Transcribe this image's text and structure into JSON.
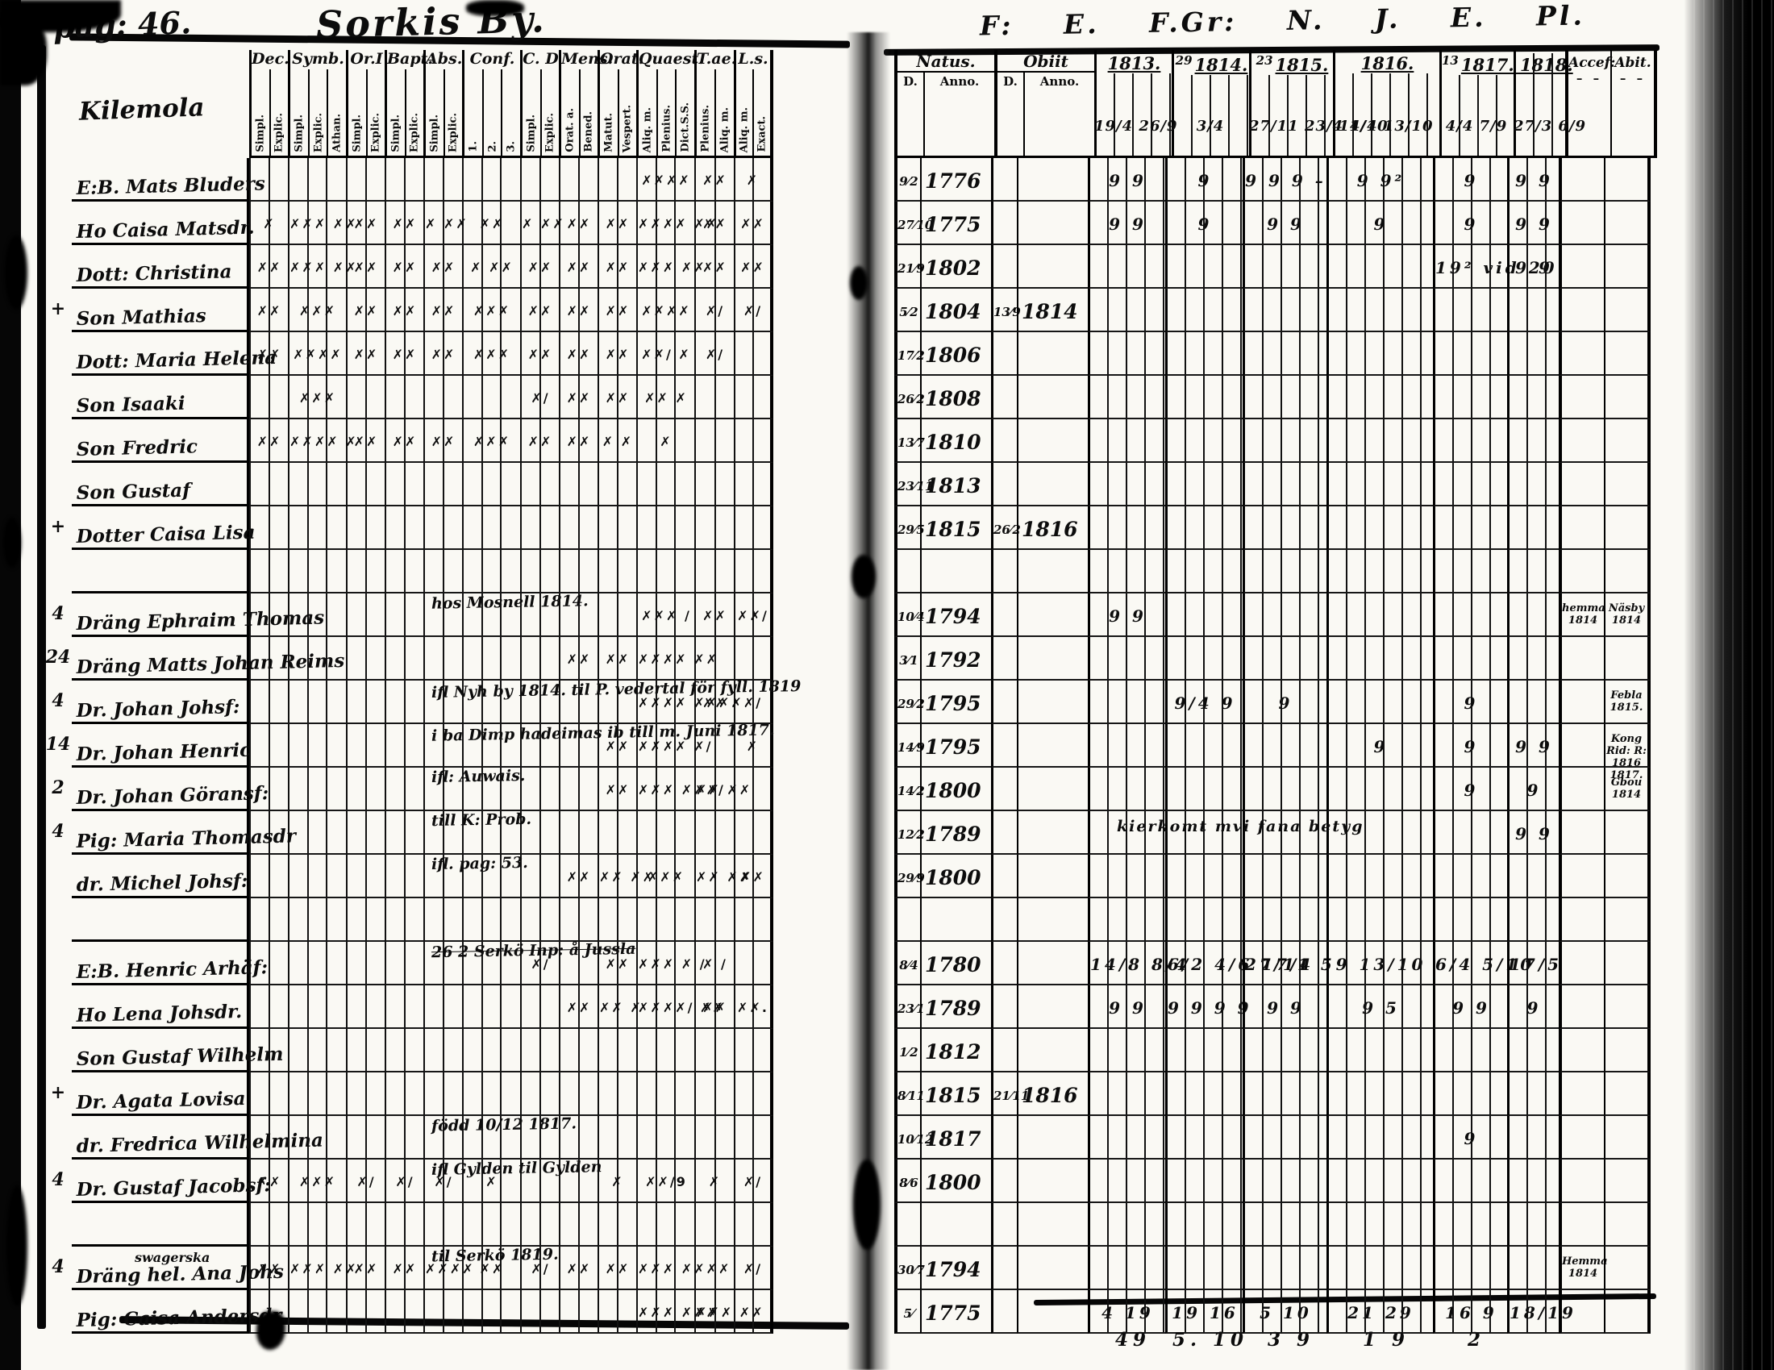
{
  "page": {
    "page_label": "pag: 46.",
    "title": "Sorkis By.",
    "village": "Kilemola",
    "top_right_script": "F:  E.  F.Gr:  N.  J. E. Pl."
  },
  "left_headers": {
    "groups": [
      {
        "label": "Dec.",
        "subs": [
          "Simpl.",
          "Explic."
        ]
      },
      {
        "label": "Symb.",
        "subs": [
          "Simpl.",
          "Explic.",
          "Athan."
        ]
      },
      {
        "label": "Or.I",
        "subs": [
          "Simpl.",
          "Explic."
        ]
      },
      {
        "label": "Bapt.",
        "subs": [
          "Simpl.",
          "Explic."
        ]
      },
      {
        "label": "Abs.",
        "subs": [
          "Simpl.",
          "Explic."
        ]
      },
      {
        "label": "Conf.",
        "subs": [
          "1.",
          "2.",
          "3."
        ]
      },
      {
        "label": "C. D",
        "subs": [
          "Simpl.",
          "Explic."
        ]
      },
      {
        "label": "Mens.",
        "subs": [
          "Orat. a.",
          "Bened."
        ]
      },
      {
        "label": "Orat.",
        "subs": [
          "Matut.",
          "Vespert."
        ]
      },
      {
        "label": "Quaest.",
        "subs": [
          "Aliq. m.",
          "Plenius.",
          "Dict.S.S."
        ]
      },
      {
        "label": "T.ae.",
        "subs": [
          "Plenius.",
          "Aliq. m."
        ]
      },
      {
        "label": "L.s.",
        "subs": [
          "Aliq. m.",
          "Exact."
        ]
      }
    ]
  },
  "right_headers": {
    "natus_label": "Natus.",
    "natus_subs": [
      "D.",
      "Anno."
    ],
    "obiit_label": "Obiit",
    "obiit_subs": [
      "D.",
      "Anno."
    ],
    "years": [
      {
        "label": "1813."
      },
      {
        "label": "1814.",
        "prefix": "29"
      },
      {
        "label": "1815.",
        "prefix": "23"
      },
      {
        "label": "1816."
      },
      {
        "label": "1817. 1818.",
        "prefix": "13"
      },
      {
        "label": ""
      }
    ],
    "accef_label": "Accef:",
    "abit_label": "Abit."
  },
  "first_dates": [
    "19/4 26/9",
    "3/4",
    "27/11 23/4 1/10",
    "14/4 13/10",
    "4/4 7/9",
    "27/3 6/9"
  ],
  "totals_below": [
    "49",
    "5. 10",
    "3 9",
    "1 9",
    "2",
    ""
  ],
  "rows": [
    {
      "name": "E:B. Mats Bluders",
      "m": {
        "qu": "✗✗✗✗",
        "tae": "✗✗",
        "ls": "✗"
      },
      "natus_d": "9/2",
      "natus_anno": "1776",
      "right": [
        "9 9",
        "9",
        "9 9 9 –",
        "9 9²",
        "9",
        "9 9"
      ]
    },
    {
      "name": "Ho Caisa Matsdr.",
      "m": {
        "dec": "✗",
        "symb": "✗✗✗ ✗✗",
        "orl": "✗✗",
        "bapt": "✗✗",
        "abs": "✗ ✗✗",
        "conf": "✗✗",
        "cd": "✗ ✗✗",
        "mens": "✗✗",
        "orat": "✗✗",
        "qu": "✗✗✗✗ ✗✗",
        "tae": "✗✗",
        "ls": "✗✗"
      },
      "natus_d": "27/10",
      "natus_anno": "1775",
      "right": [
        "9 9",
        "9",
        "9 9",
        "9",
        "9",
        "9 9"
      ]
    },
    {
      "name": "Dott: Christina",
      "m": {
        "dec": "✗✗",
        "symb": "✗✗✗ ✗✗",
        "orl": "✗✗",
        "bapt": "✗✗",
        "abs": "✗✗",
        "conf": "✗ ✗✗",
        "cd": "✗✗",
        "mens": "✗✗",
        "orat": "✗✗",
        "qu": "✗✗✗ ✗✗",
        "tae": "✗✗",
        "ls": "✗✗"
      },
      "natus_d": "21/9",
      "natus_anno": "1802",
      "right": [
        "",
        "",
        "",
        "",
        "19² vid 20",
        "9 9"
      ]
    },
    {
      "margin": "+",
      "name": "Son Mathias",
      "m": {
        "dec": "✗✗",
        "symb": "✗✗✗",
        "orl": "✗✗",
        "bapt": "✗✗",
        "abs": "✗✗",
        "conf": "✗✗✗",
        "cd": "✗✗",
        "mens": "✗✗",
        "orat": "✗✗",
        "qu": "✗✗✗✗",
        "tae": "✗/",
        "ls": "✗/"
      },
      "natus_d": "5/2",
      "natus_anno": "1804",
      "obiit_d": "13/9",
      "obiit_anno": "1814"
    },
    {
      "name": "Dott: Maria Helena",
      "m": {
        "dec": "✗✗",
        "symb": "✗✗✗✗",
        "orl": "✗✗",
        "bapt": "✗✗",
        "abs": "✗✗",
        "conf": "✗✗✗",
        "cd": "✗✗",
        "mens": "✗✗",
        "orat": "✗✗",
        "qu": "✗✗/ ✗",
        "tae": "✗/"
      },
      "natus_d": "17/2",
      "natus_anno": "1806"
    },
    {
      "name": "Son Isaaki",
      "m": {
        "symb": "✗✗✗",
        "cd": "✗/",
        "mens": "✗✗",
        "orat": "✗✗",
        "qu": "✗✗ ✗"
      },
      "natus_d": "26/2",
      "natus_anno": "1808"
    },
    {
      "name": "Son Fredric",
      "m": {
        "dec": "✗✗",
        "symb": "✗✗✗✗ ✗",
        "orl": "✗✗",
        "bapt": "✗✗",
        "abs": "✗✗",
        "conf": "✗✗✗",
        "cd": "✗✗",
        "mens": "✗✗",
        "orat": "✗ ✗",
        "qu": "✗"
      },
      "natus_d": "13/7",
      "natus_anno": "1810"
    },
    {
      "name": "Son Gustaf",
      "natus_d": "23/11",
      "natus_anno": "1813"
    },
    {
      "margin": "+",
      "name": "Dotter Caisa Lisa",
      "natus_d": "29/5",
      "natus_anno": "1815",
      "obiit_d": "26/2",
      "obiit_anno": "1816"
    },
    {
      "name": ""
    },
    {
      "margin": "4",
      "name": "Dräng Ephraim Thomas",
      "note": "hos Mosnell 1814.",
      "m": {
        "qu": "✗✗✗ /",
        "tae": "✗✗",
        "ls": "✗✗/"
      },
      "natus_d": "10/4",
      "natus_anno": "1794",
      "right": [
        "9 9",
        "",
        "",
        "",
        "",
        ""
      ],
      "accef": "hemma 1814",
      "abit": "Näsby 1814"
    },
    {
      "margin": "24",
      "name": "Dräng Matts Johan Reims",
      "m": {
        "mens": "✗✗",
        "orat": "✗✗",
        "qu": "✗✗✗✗ ✗✗"
      },
      "natus_d": "3/1",
      "natus_anno": "1792"
    },
    {
      "margin": "4",
      "name": "Dr. Johan Johsf:",
      "note": "ifl Nyh by 1814. til P. vedertal för fyll. 1819",
      "m": {
        "qu": "✗✗✗✗ ✗✗✗✗",
        "tae": "✗✗",
        "ls": "✗/"
      },
      "natus_d": "29/2",
      "natus_anno": "1795",
      "right": [
        "",
        "9/4 9",
        "9",
        "",
        "9",
        ""
      ],
      "abit": "Febla 1815."
    },
    {
      "margin": "14",
      "name": "Dr. Johan Henric",
      "note": "i ba Dimp hadeimas ib till m. Juni 1817.",
      "m": {
        "orat": "✗✗",
        "qu": "✗✗✗✗ ✗/",
        "ls": "✗"
      },
      "natus_d": "14/9",
      "natus_anno": "1795",
      "right": [
        "",
        "",
        "",
        "9",
        "9",
        "9 9"
      ],
      "abit": "Kong Rid: R: 1816 1817."
    },
    {
      "margin": "2",
      "name": "Dr. Johan Göransf:",
      "note": "ifl: Auwais.",
      "m": {
        "orat": "✗✗",
        "qu": "✗✗✗ ✗✗✗/",
        "tae": "✗✗ ✗✗"
      },
      "natus_d": "14/2",
      "natus_anno": "1800",
      "right": [
        "",
        "",
        "",
        "",
        "9",
        "9"
      ],
      "abit": "Gbou 1814"
    },
    {
      "margin": "4",
      "name": "Pig: Maria Thomasdr",
      "note": "till K: Prob.",
      "natus_d": "12/2",
      "natus_anno": "1789",
      "right_note": "kierkomt mvi fana betyg",
      "right": [
        "",
        "",
        "",
        "",
        "",
        "9 9"
      ]
    },
    {
      "name": "dr. Michel Johsf:",
      "note": "ifl. pag: 53.",
      "m": {
        "mens": "✗✗",
        "orat": "✗✗ ✗✗",
        "qu": "✗✗✗",
        "tae": "✗✗ ✗✗",
        "ls": "✗✗"
      },
      "natus_d": "29/9",
      "natus_anno": "1800"
    },
    {
      "name": ""
    },
    {
      "name": "E:B. Henric Arhäf:",
      "note": "26  2 Serkö Inp: å Jussla",
      "note_struck": true,
      "m": {
        "cd": "✗/",
        "orat": "✗✗",
        "qu": "✗✗✗ ✗ /",
        "tae": "✗ /"
      },
      "natus_d": "8/4",
      "natus_anno": "1780",
      "right": [
        "14/8 8/4",
        "6/2 4/6 17/4",
        "27/11 5",
        "9 13/10",
        "6/4 5/10",
        "17/5"
      ]
    },
    {
      "name": "Ho Lena Johsdr.",
      "m": {
        "mens": "✗✗",
        "orat": "✗✗ ✗",
        "qu": "✗✗✗✗/ ✗✗",
        "tae": "✗✗",
        "ls": "✗✗."
      },
      "natus_d": "23/1",
      "natus_anno": "1789",
      "right": [
        "9 9",
        "9 9 9 9",
        "9 9",
        "9 5",
        "9 9",
        "9"
      ]
    },
    {
      "name": "Son Gustaf Wilhelm",
      "natus_d": "1/2",
      "natus_anno": "1812"
    },
    {
      "margin": "+",
      "name": "Dr. Agata Lovisa",
      "natus_d": "8/11",
      "natus_anno": "1815",
      "obiit_d": "21/11",
      "obiit_anno": "1816"
    },
    {
      "name": "dr. Fredrica Wilhelmina",
      "note": "född 10/12  1817.",
      "natus_d": "10/12",
      "natus_anno": "1817",
      "right": [
        "",
        "",
        "",
        "",
        "9",
        ""
      ]
    },
    {
      "margin": "4",
      "name": "Dr. Gustaf Jacobsf:",
      "note": "ifl Gylden  til Gylden",
      "m": {
        "dec": "✗✗",
        "symb": "✗✗✗",
        "orl": "✗/",
        "bapt": "✗/",
        "abs": "✗/",
        "conf": "✗",
        "orat": "✗",
        "qu": "✗✗/9",
        "tae": "✗",
        "ls": "✗/"
      },
      "natus_d": "8/6",
      "natus_anno": "1800"
    },
    {
      "name": ""
    },
    {
      "margin": "4",
      "name": "Dräng hel. Ana Johs",
      "note_above": "swagerska",
      "note": "til Serkö 1819.",
      "m": {
        "dec": "✗✗",
        "symb": "✗✗✗ ✗✗",
        "orl": "✗✗",
        "bapt": "✗✗",
        "abs": "✗✗✗✗",
        "conf": "✗✗",
        "cd": "✗/",
        "mens": "✗✗",
        "orat": "✗✗",
        "qu": "✗✗✗ ✗✗✗✗",
        "ls": "✗/"
      },
      "natus_d": "30/7",
      "natus_anno": "1794",
      "accef": "Hemma 1814"
    },
    {
      "name": "Pig: Caisa Andersdr.",
      "m": {
        "qu": "✗✗✗ ✗✗✗",
        "tae": "✗✗✗ ✗✗"
      },
      "natus_d": "5/",
      "natus_anno": "1775",
      "right": [
        "4 19",
        "19 16",
        "5 10",
        "21 29",
        "16 9",
        "18/19"
      ]
    }
  ]
}
